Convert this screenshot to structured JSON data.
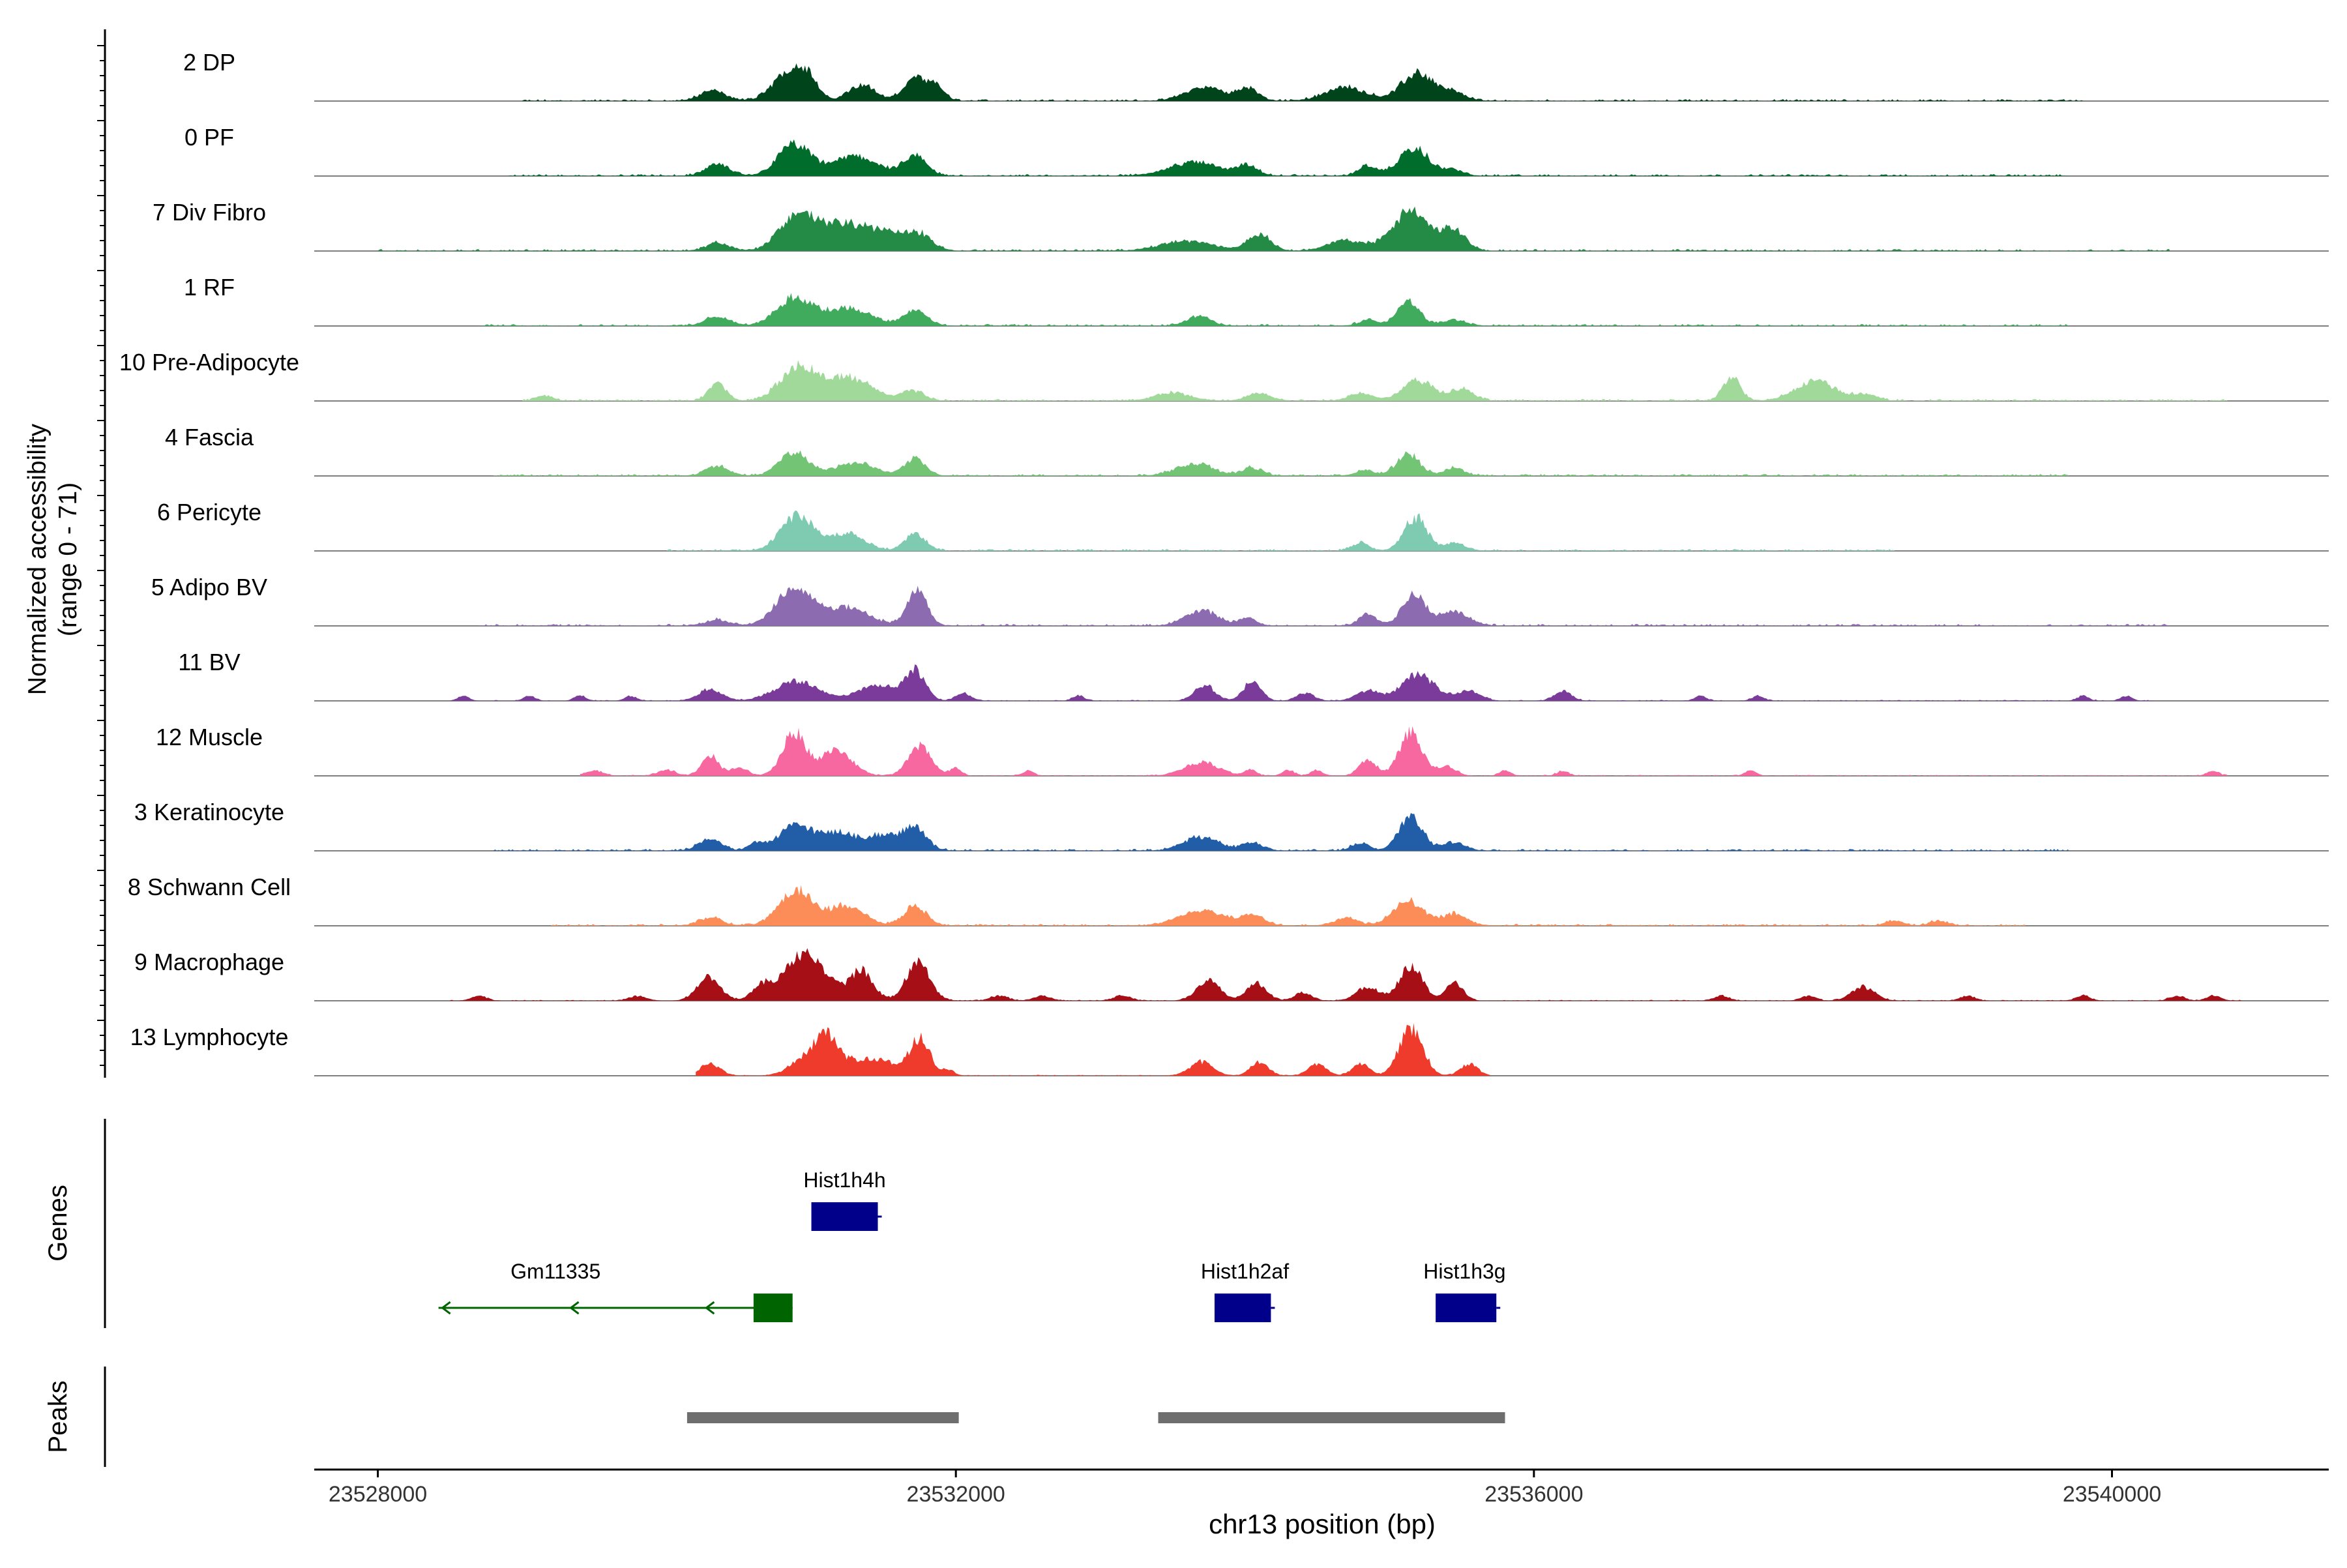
{
  "chart_data": {
    "type": "area",
    "title": "",
    "xlabel": "chr13 position (bp)",
    "ylabel": "Normalized accessibility",
    "ylabel_sub": "(range 0 - 71)",
    "xlim": [
      23527560,
      23541500
    ],
    "ylim": [
      0,
      71
    ],
    "xticks": [
      23528000,
      23532000,
      23536000,
      23540000
    ],
    "xtick_labels": [
      "23528000",
      "23532000",
      "23536000",
      "23540000"
    ],
    "tracks": [
      {
        "name": "2 DP",
        "color": "#00441b",
        "peaks": [
          [
            23530320,
            10,
            90
          ],
          [
            23530850,
            30,
            110
          ],
          [
            23530970,
            16,
            70
          ],
          [
            23531350,
            17,
            90
          ],
          [
            23531720,
            23,
            80
          ],
          [
            23531870,
            13,
            55
          ],
          [
            23533720,
            14,
            130
          ],
          [
            23534020,
            13,
            70
          ],
          [
            23534700,
            14,
            140
          ],
          [
            23535200,
            29,
            110
          ],
          [
            23535450,
            8,
            80
          ]
        ],
        "noise_range": [
          23529000,
          23539800
        ],
        "noise_level": 2
      },
      {
        "name": "0 PF",
        "color": "#006d2c",
        "peaks": [
          [
            23530350,
            12,
            80
          ],
          [
            23530880,
            32,
            110
          ],
          [
            23531300,
            20,
            160
          ],
          [
            23531720,
            19,
            80
          ],
          [
            23533660,
            14,
            180
          ],
          [
            23534020,
            9,
            70
          ],
          [
            23534840,
            10,
            60
          ],
          [
            23535170,
            27,
            110
          ],
          [
            23535450,
            6,
            60
          ]
        ],
        "noise_range": [
          23528900,
          23539700
        ],
        "noise_level": 2
      },
      {
        "name": "7 Div Fibro",
        "color": "#238b45",
        "peaks": [
          [
            23530350,
            8,
            80
          ],
          [
            23530900,
            36,
            120
          ],
          [
            23531200,
            24,
            150
          ],
          [
            23531500,
            18,
            150
          ],
          [
            23531750,
            14,
            90
          ],
          [
            23533600,
            10,
            180
          ],
          [
            23534100,
            17,
            80
          ],
          [
            23534700,
            11,
            120
          ],
          [
            23535150,
            40,
            130
          ],
          [
            23535450,
            20,
            80
          ]
        ],
        "noise_range": [
          23528000,
          23540400
        ],
        "noise_level": 2
      },
      {
        "name": "1 RF",
        "color": "#41ab5d",
        "peaks": [
          [
            23530350,
            10,
            80
          ],
          [
            23530880,
            28,
            120
          ],
          [
            23531250,
            18,
            160
          ],
          [
            23531720,
            16,
            80
          ],
          [
            23533680,
            10,
            80
          ],
          [
            23534850,
            6,
            60
          ],
          [
            23535130,
            24,
            80
          ],
          [
            23535450,
            6,
            80
          ]
        ],
        "noise_range": [
          23528700,
          23539700
        ],
        "noise_level": 2
      },
      {
        "name": "10 Pre-Adipocyte",
        "color": "#a1d99b",
        "peaks": [
          [
            23529150,
            5,
            60
          ],
          [
            23530350,
            18,
            60
          ],
          [
            23530900,
            34,
            120
          ],
          [
            23531250,
            24,
            160
          ],
          [
            23531700,
            10,
            80
          ],
          [
            23533500,
            8,
            120
          ],
          [
            23534100,
            8,
            80
          ],
          [
            23534800,
            8,
            80
          ],
          [
            23535200,
            20,
            110
          ],
          [
            23535500,
            12,
            80
          ],
          [
            23537370,
            24,
            60
          ],
          [
            23537950,
            20,
            140
          ],
          [
            23538300,
            6,
            80
          ]
        ],
        "noise_range": [
          23529000,
          23540800
        ],
        "noise_level": 2
      },
      {
        "name": "4 Fascia",
        "color": "#74c476",
        "peaks": [
          [
            23530350,
            10,
            80
          ],
          [
            23530880,
            24,
            100
          ],
          [
            23531300,
            13,
            140
          ],
          [
            23531720,
            18,
            70
          ],
          [
            23533650,
            12,
            130
          ],
          [
            23534050,
            8,
            70
          ],
          [
            23534830,
            6,
            60
          ],
          [
            23535130,
            22,
            80
          ],
          [
            23535450,
            8,
            70
          ]
        ],
        "noise_range": [
          23528800,
          23539700
        ],
        "noise_level": 2
      },
      {
        "name": "6 Pericyte",
        "color": "#7ecbb2",
        "peaks": [
          [
            23530900,
            36,
            110
          ],
          [
            23531250,
            18,
            120
          ],
          [
            23531720,
            18,
            70
          ],
          [
            23534800,
            8,
            60
          ],
          [
            23535180,
            34,
            80
          ],
          [
            23535450,
            8,
            70
          ]
        ],
        "noise_range": [
          23530000,
          23538500
        ],
        "noise_level": 2
      },
      {
        "name": "5 Adipo BV",
        "color": "#8c6bb1",
        "peaks": [
          [
            23530350,
            6,
            80
          ],
          [
            23530880,
            40,
            120
          ],
          [
            23531250,
            18,
            150
          ],
          [
            23531730,
            34,
            70
          ],
          [
            23533700,
            16,
            110
          ],
          [
            23534020,
            8,
            60
          ],
          [
            23534850,
            12,
            60
          ],
          [
            23535170,
            32,
            80
          ],
          [
            23535450,
            14,
            100
          ]
        ],
        "noise_range": [
          23528700,
          23540400
        ],
        "noise_level": 2
      },
      {
        "name": "11 BV",
        "color": "#7a3b9a",
        "peaks": [
          [
            23528590,
            5,
            40
          ],
          [
            23529050,
            5,
            40
          ],
          [
            23529400,
            5,
            40
          ],
          [
            23529750,
            5,
            40
          ],
          [
            23530300,
            12,
            80
          ],
          [
            23530900,
            20,
            150
          ],
          [
            23531450,
            16,
            130
          ],
          [
            23531720,
            30,
            70
          ],
          [
            23532050,
            8,
            50
          ],
          [
            23532850,
            5,
            40
          ],
          [
            23533720,
            16,
            70
          ],
          [
            23534050,
            20,
            60
          ],
          [
            23534420,
            8,
            60
          ],
          [
            23534850,
            10,
            80
          ],
          [
            23535200,
            26,
            120
          ],
          [
            23535550,
            10,
            80
          ],
          [
            23536200,
            10,
            60
          ],
          [
            23537150,
            5,
            40
          ],
          [
            23537550,
            5,
            40
          ],
          [
            23539800,
            5,
            40
          ],
          [
            23540100,
            5,
            40
          ]
        ],
        "noise_range": [
          23528500,
          23540300
        ],
        "noise_level": 1
      },
      {
        "name": "12 Muscle",
        "color": "#f768a1",
        "peaks": [
          [
            23529500,
            5,
            60
          ],
          [
            23530000,
            6,
            60
          ],
          [
            23530300,
            20,
            60
          ],
          [
            23530500,
            8,
            60
          ],
          [
            23530880,
            44,
            80
          ],
          [
            23531170,
            26,
            110
          ],
          [
            23531750,
            30,
            80
          ],
          [
            23532000,
            8,
            40
          ],
          [
            23532500,
            5,
            40
          ],
          [
            23533700,
            14,
            120
          ],
          [
            23534040,
            6,
            40
          ],
          [
            23534300,
            6,
            40
          ],
          [
            23534500,
            6,
            40
          ],
          [
            23534850,
            16,
            60
          ],
          [
            23535150,
            44,
            80
          ],
          [
            23535400,
            10,
            60
          ],
          [
            23535800,
            5,
            40
          ],
          [
            23536200,
            5,
            40
          ],
          [
            23537500,
            5,
            40
          ],
          [
            23540700,
            5,
            40
          ]
        ],
        "noise_range": [
          23529400,
          23540800
        ],
        "noise_level": 1
      },
      {
        "name": "3 Keratinocyte",
        "color": "#225ea8",
        "peaks": [
          [
            23530300,
            12,
            80
          ],
          [
            23530620,
            8,
            50
          ],
          [
            23530900,
            26,
            120
          ],
          [
            23531200,
            18,
            110
          ],
          [
            23531500,
            16,
            110
          ],
          [
            23531720,
            22,
            80
          ],
          [
            23533700,
            14,
            120
          ],
          [
            23534050,
            8,
            70
          ],
          [
            23534800,
            8,
            60
          ],
          [
            23535150,
            36,
            80
          ],
          [
            23535450,
            8,
            80
          ]
        ],
        "noise_range": [
          23528800,
          23539700
        ],
        "noise_level": 2
      },
      {
        "name": "8 Schwann Cell",
        "color": "#fc8d59",
        "peaks": [
          [
            23530300,
            8,
            80
          ],
          [
            23530900,
            36,
            120
          ],
          [
            23531250,
            20,
            120
          ],
          [
            23531720,
            20,
            80
          ],
          [
            23533700,
            16,
            150
          ],
          [
            23534050,
            10,
            80
          ],
          [
            23534700,
            8,
            80
          ],
          [
            23535130,
            26,
            100
          ],
          [
            23535450,
            12,
            90
          ],
          [
            23538500,
            5,
            60
          ],
          [
            23538800,
            5,
            60
          ]
        ],
        "noise_range": [
          23529200,
          23539400
        ],
        "noise_level": 2
      },
      {
        "name": "9 Macrophage",
        "color": "#a50f15",
        "peaks": [
          [
            23528700,
            5,
            50
          ],
          [
            23529800,
            5,
            60
          ],
          [
            23530290,
            24,
            80
          ],
          [
            23530650,
            12,
            60
          ],
          [
            23530950,
            48,
            150
          ],
          [
            23531350,
            30,
            80
          ],
          [
            23531740,
            42,
            80
          ],
          [
            23532300,
            5,
            60
          ],
          [
            23532600,
            5,
            60
          ],
          [
            23533150,
            5,
            60
          ],
          [
            23533750,
            22,
            80
          ],
          [
            23534080,
            18,
            70
          ],
          [
            23534400,
            8,
            60
          ],
          [
            23534850,
            14,
            80
          ],
          [
            23535150,
            36,
            80
          ],
          [
            23535450,
            18,
            60
          ],
          [
            23537300,
            5,
            50
          ],
          [
            23537900,
            5,
            50
          ],
          [
            23538280,
            14,
            80
          ],
          [
            23539000,
            5,
            50
          ],
          [
            23539800,
            5,
            50
          ],
          [
            23540450,
            5,
            50
          ],
          [
            23540700,
            5,
            50
          ]
        ],
        "noise_range": [
          23528500,
          23540900
        ],
        "noise_level": 1
      },
      {
        "name": "13 Lymphocyte",
        "color": "#ef3b2c",
        "peaks": [
          [
            23530300,
            12,
            70
          ],
          [
            23530950,
            16,
            100
          ],
          [
            23531100,
            36,
            80
          ],
          [
            23531300,
            14,
            100
          ],
          [
            23531500,
            14,
            100
          ],
          [
            23531750,
            38,
            70
          ],
          [
            23531950,
            6,
            40
          ],
          [
            23533700,
            14,
            80
          ],
          [
            23534100,
            14,
            60
          ],
          [
            23534500,
            12,
            60
          ],
          [
            23534800,
            12,
            60
          ],
          [
            23535150,
            50,
            80
          ],
          [
            23535550,
            12,
            60
          ]
        ],
        "noise_range": [
          23530200,
          23535700
        ],
        "noise_level": 1
      }
    ]
  },
  "axis_labels": {
    "genes_label": "Genes",
    "peaks_label": "Peaks"
  },
  "genes": [
    {
      "name": "Hist1h4h",
      "start": 23531000,
      "end": 23531460,
      "row": 0,
      "color": "#00008b",
      "strand": "+",
      "label_pos": 23531230
    },
    {
      "name": "Gm11335",
      "start": 23528420,
      "end": 23530870,
      "row": 1,
      "color": "#006400",
      "strand": "-",
      "exon": [
        23530600,
        23530870
      ],
      "label_pos": 23529230
    },
    {
      "name": "Hist1h2af",
      "start": 23533790,
      "end": 23534180,
      "row": 1,
      "color": "#00008b",
      "strand": "+",
      "label_pos": 23534000
    },
    {
      "name": "Hist1h3g",
      "start": 23535320,
      "end": 23535740,
      "row": 1,
      "color": "#00008b",
      "strand": "+",
      "label_pos": 23535520
    }
  ],
  "peaks": [
    {
      "start": 23530140,
      "end": 23532020,
      "color": "#6e6e6e"
    },
    {
      "start": 23533400,
      "end": 23535800,
      "color": "#6e6e6e"
    }
  ]
}
